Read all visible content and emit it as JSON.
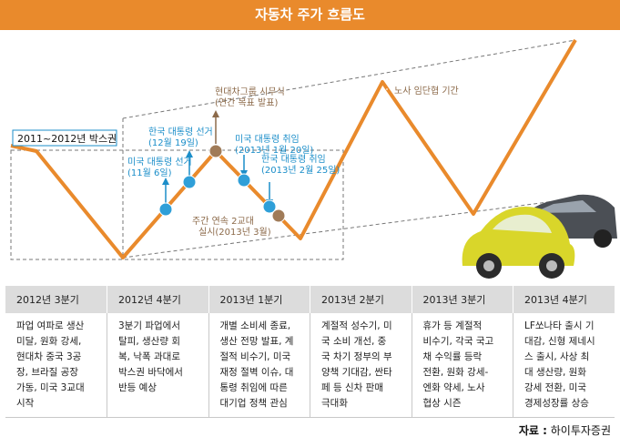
{
  "title": "자동차 주가 흐름도",
  "box_label": "2011~2012년 박스권",
  "annotations": {
    "union_period": "노사 임단협 기간",
    "hyundai_kickoff_line1": "현대차그룹 시무식",
    "hyundai_kickoff_line2": "(연간 목표 발표)",
    "korea_election_line1": "한국 대통령 선거",
    "korea_election_line2": "(12월 19일)",
    "us_election_line1": "미국 대통령 선거",
    "us_election_line2": "(11월 6일)",
    "us_inauguration_line1": "미국 대통령 취임",
    "us_inauguration_line2": "(2013년 1월 20일)",
    "korea_inauguration_line1": "한국 대통령 취임",
    "korea_inauguration_line2": "(2013년 2월 25일)",
    "two_shift_line1": "주간 연속 2교대",
    "two_shift_line2": "실시(2013년 3월)"
  },
  "colors": {
    "accent": "#e98a2c",
    "event_blue": "#1b8ec9",
    "event_brown": "#8c6a4a"
  },
  "quarters": [
    {
      "header": "2012년 3분기",
      "lines": [
        "파업 여파로 생산",
        "미달, 원화 강세,",
        "현대차 중국 3공",
        "장, 브라질 공장",
        "가동, 미국 3교대",
        "시작"
      ]
    },
    {
      "header": "2012년 4분기",
      "lines": [
        "3분기 파업에서",
        "탈피, 생산량 회",
        "복, 낙폭 과대로",
        "박스권 바닥에서",
        "반등 예상"
      ]
    },
    {
      "header": "2013년 1분기",
      "lines": [
        "개별 소비세 종료,",
        "생산 전망 발표, 계",
        "절적 비수기, 미국",
        "재정 절벽 이슈, 대",
        "통령 취임에 따른",
        "대기업 정책 관심"
      ]
    },
    {
      "header": "2013년 2분기",
      "lines": [
        "계절적 성수기, 미",
        "국 소비 개선, 중",
        "국 차기 정부의 부",
        "양책 기대감, 싼타",
        "페 등 신차 판매",
        "극대화"
      ]
    },
    {
      "header": "2013년 3분기",
      "lines": [
        "휴가 등 계절적",
        "비수기, 각국 국고",
        "채 수익률 등락",
        "전환, 원화 강세-",
        "엔화 약세, 노사",
        "협상 시즌"
      ]
    },
    {
      "header": "2013년 4분기",
      "lines": [
        "LF쏘나타 출시 기",
        "대감, 신형 제네시",
        "스 출시, 사상 최",
        "대 생산량, 원화",
        "강세 전환, 미국",
        "경제성장률 상승"
      ]
    }
  ],
  "source": {
    "label": "자료 :",
    "name": "하이투자증권"
  }
}
